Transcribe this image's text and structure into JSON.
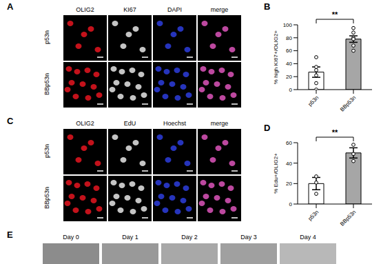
{
  "figure": {
    "panel_labels": [
      "A",
      "B",
      "C",
      "D",
      "E"
    ],
    "image_grids": [
      {
        "columns": [
          "OLIG2",
          "KI67",
          "DAPI",
          "merge"
        ],
        "rows": [
          "p53n",
          "BBp53n"
        ]
      },
      {
        "columns": [
          "OLIG2",
          "EdU",
          "Hoechst",
          "merge"
        ],
        "rows": [
          "p53n",
          "BBp53n"
        ]
      }
    ],
    "timeline": [
      "Day 0",
      "Day 1",
      "Day 2",
      "Day 3",
      "Day 4"
    ]
  },
  "chart_data": [
    {
      "type": "bar",
      "categories": [
        "p53n",
        "BBp53n"
      ],
      "values": [
        27,
        78
      ],
      "error_bars": [
        8,
        5
      ],
      "points": [
        [
          50,
          35,
          30,
          22,
          10,
          0
        ],
        [
          95,
          88,
          80,
          78,
          68,
          60
        ]
      ],
      "colors": [
        "#ffffff",
        "#a6a6a6"
      ],
      "ylabel": "% high KI67+/OLIG2+",
      "ylim": [
        0,
        100
      ],
      "yticks": [
        0,
        20,
        40,
        60,
        80,
        100
      ],
      "annotations": [
        "**"
      ]
    },
    {
      "type": "bar",
      "categories": [
        "p53n",
        "BBp53n"
      ],
      "values": [
        20,
        50
      ],
      "error_bars": [
        6,
        5
      ],
      "points": [
        [
          27,
          21,
          10
        ],
        [
          58,
          49,
          42
        ]
      ],
      "colors": [
        "#ffffff",
        "#a6a6a6"
      ],
      "ylabel": "% Edu+/OLIG2+",
      "ylim": [
        0,
        60
      ],
      "yticks": [
        0,
        20,
        40,
        60
      ],
      "annotations": [
        "**"
      ]
    }
  ]
}
